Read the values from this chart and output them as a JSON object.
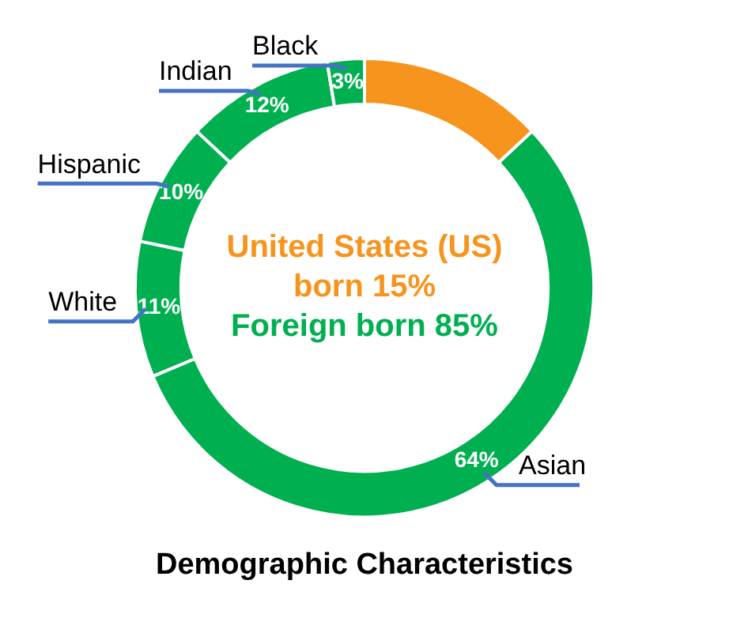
{
  "chart_data": {
    "type": "donut",
    "title": "Demographic Characteristics",
    "categories": [
      null,
      "Asian",
      "White",
      "Hispanic",
      "Indian",
      "Black"
    ],
    "values": [
      15,
      64,
      11,
      10,
      12,
      3
    ],
    "colors": [
      "#f7941d",
      "#00b050",
      "#00b050",
      "#00b050",
      "#00b050",
      "#00b050"
    ],
    "value_labels": [
      null,
      "64%",
      "11%",
      "10%",
      "12%",
      "3%"
    ],
    "annotations": [
      "United States (US) born 15%",
      "Foreign born 85%"
    ]
  }
}
